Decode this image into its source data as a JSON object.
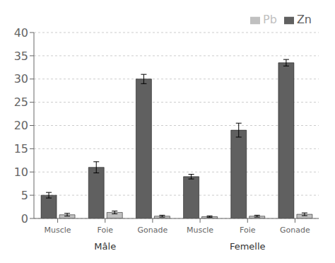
{
  "chart_data": {
    "type": "bar",
    "categories": [
      "Muscle",
      "Foie",
      "Gonade",
      "Muscle",
      "Foie",
      "Gonade"
    ],
    "series": [
      {
        "name": "Zn",
        "color": "#606060",
        "values": [
          5.0,
          11.0,
          30.0,
          9.0,
          19.0,
          33.5
        ],
        "errors": [
          0.6,
          1.2,
          1.0,
          0.5,
          1.5,
          0.7
        ]
      },
      {
        "name": "Pb",
        "color": "#c0c0c0",
        "values": [
          0.8,
          1.3,
          0.5,
          0.4,
          0.5,
          0.9
        ],
        "errors": [
          0.3,
          0.3,
          0.2,
          0.15,
          0.2,
          0.3
        ]
      }
    ],
    "annotations": [
      "Mâle",
      "Femelle"
    ],
    "ylim": [
      0,
      40
    ],
    "yticks": [
      0,
      5,
      10,
      15,
      20,
      25,
      30,
      35,
      40
    ],
    "grid": true,
    "legend": "upper right"
  }
}
